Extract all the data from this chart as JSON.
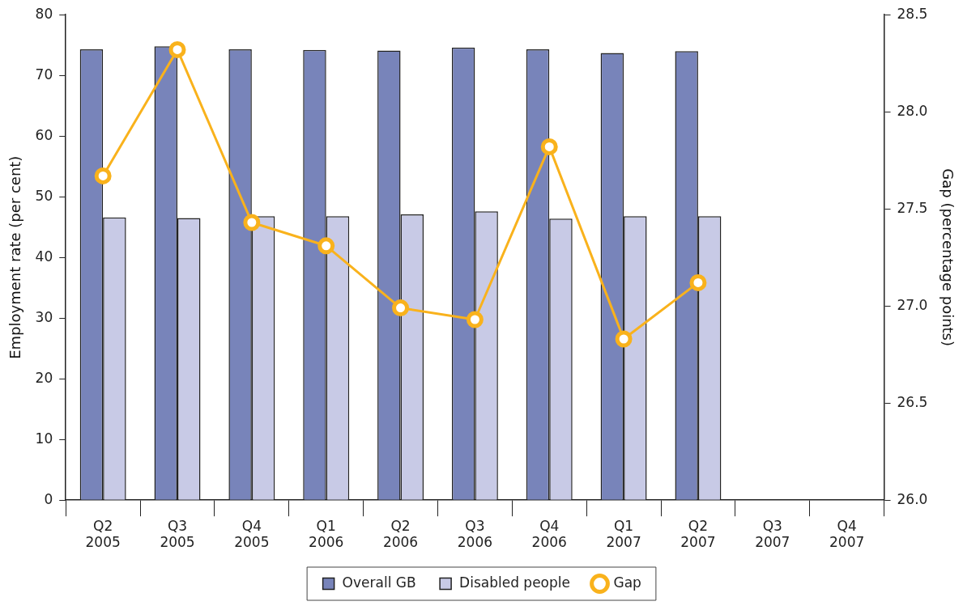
{
  "chart_data": {
    "type": "bar",
    "categories": [
      "Q2\n2005",
      "Q3\n2005",
      "Q4\n2005",
      "Q1\n2006",
      "Q2\n2006",
      "Q3\n2006",
      "Q4\n2006",
      "Q1\n2007",
      "Q2\n2007",
      "Q3\n2007",
      "Q4\n2007"
    ],
    "series": [
      {
        "name": "Overall GB",
        "color": "#7884ba",
        "values": [
          74.3,
          74.8,
          74.3,
          74.2,
          74.1,
          74.6,
          74.3,
          73.7,
          74.0,
          null,
          null
        ]
      },
      {
        "name": "Disabled people",
        "color": "#c8cae6",
        "values": [
          46.6,
          46.5,
          46.8,
          46.8,
          47.1,
          47.6,
          46.4,
          46.8,
          46.8,
          null,
          null
        ]
      },
      {
        "name": "Gap",
        "type": "line",
        "axis": "y2",
        "color": "#f9b21c",
        "marker": "circle",
        "values": [
          27.67,
          28.32,
          27.43,
          27.31,
          26.99,
          26.93,
          27.82,
          26.83,
          27.12,
          null,
          null
        ]
      }
    ],
    "ylabel": "Employment rate (per cent)",
    "y2label": "Gap (percentage points)",
    "ylim": [
      0,
      80
    ],
    "yticks": [
      0,
      10,
      20,
      30,
      40,
      50,
      60,
      70,
      80
    ],
    "y2lim": [
      26.0,
      28.5
    ],
    "y2ticks": [
      {
        "value": 26.0,
        "label": "26.0"
      },
      {
        "value": 26.5,
        "label": "26.5"
      },
      {
        "value": 27.0,
        "label": "27.0"
      },
      {
        "value": 27.5,
        "label": "27.5"
      },
      {
        "value": 28.0,
        "label": "28.0"
      },
      {
        "value": 28.5,
        "label": "28.5"
      }
    ],
    "grid": false,
    "legend": "bottom"
  }
}
